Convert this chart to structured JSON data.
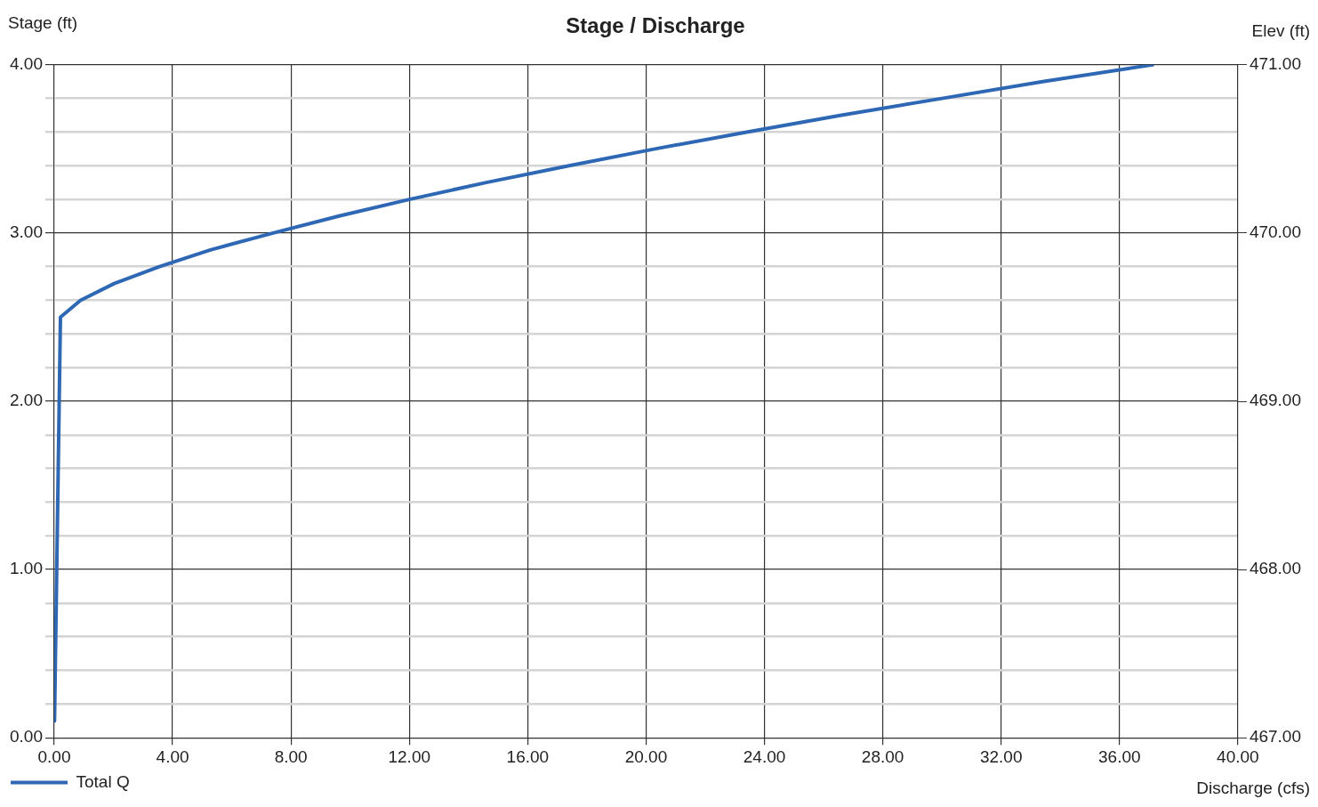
{
  "chart_data": {
    "type": "line",
    "title": "Stage / Discharge",
    "xlabel": "Discharge (cfs)",
    "ylabel": "Stage (ft)",
    "y2label": "Elev (ft)",
    "series": [
      {
        "name": "Total Q",
        "color": "#2e67b4",
        "x": [
          0.01,
          0.21,
          0.89,
          2.03,
          3.56,
          5.28,
          7.4,
          9.6,
          12.0,
          14.6,
          17.4,
          20.3,
          23.4,
          26.6,
          30.0,
          33.4,
          37.12
        ],
        "values": [
          0.1,
          2.5,
          2.6,
          2.7,
          2.8,
          2.9,
          3.0,
          3.1,
          3.2,
          3.3,
          3.4,
          3.5,
          3.6,
          3.7,
          3.8,
          3.9,
          4.0
        ]
      }
    ],
    "xlim": [
      0,
      40
    ],
    "xticks": [
      {
        "value": 0,
        "label": "0.00"
      },
      {
        "value": 4,
        "label": "4.00"
      },
      {
        "value": 8,
        "label": "8.00"
      },
      {
        "value": 12,
        "label": "12.00"
      },
      {
        "value": 16,
        "label": "16.00"
      },
      {
        "value": 20,
        "label": "20.00"
      },
      {
        "value": 24,
        "label": "24.00"
      },
      {
        "value": 28,
        "label": "28.00"
      },
      {
        "value": 32,
        "label": "32.00"
      },
      {
        "value": 36,
        "label": "36.00"
      },
      {
        "value": 40,
        "label": "40.00"
      }
    ],
    "ylim": [
      0,
      4
    ],
    "yticks": [
      {
        "value": 0,
        "label": "0.00"
      },
      {
        "value": 0.2,
        "label": null
      },
      {
        "value": 0.4,
        "label": null
      },
      {
        "value": 0.6,
        "label": null
      },
      {
        "value": 0.8,
        "label": null
      },
      {
        "value": 1,
        "label": "1.00"
      },
      {
        "value": 1.2,
        "label": null
      },
      {
        "value": 1.4,
        "label": null
      },
      {
        "value": 1.6,
        "label": null
      },
      {
        "value": 1.8,
        "label": null
      },
      {
        "value": 2,
        "label": "2.00"
      },
      {
        "value": 2.2,
        "label": null
      },
      {
        "value": 2.4,
        "label": null
      },
      {
        "value": 2.6,
        "label": null
      },
      {
        "value": 2.8,
        "label": null
      },
      {
        "value": 3,
        "label": "3.00"
      },
      {
        "value": 3.2,
        "label": null
      },
      {
        "value": 3.4,
        "label": null
      },
      {
        "value": 3.6,
        "label": null
      },
      {
        "value": 3.8,
        "label": null
      },
      {
        "value": 4,
        "label": "4.00"
      }
    ],
    "y2lim": [
      467,
      471
    ],
    "y2ticks": [
      {
        "value": 467,
        "label": "467.00"
      },
      {
        "value": 468,
        "label": "468.00"
      },
      {
        "value": 469,
        "label": "469.00"
      },
      {
        "value": 470,
        "label": "470.00"
      },
      {
        "value": 471,
        "label": "471.00"
      }
    ],
    "grid": true,
    "legend": "bottom left",
    "marker": "none",
    "line_style": "solid"
  }
}
